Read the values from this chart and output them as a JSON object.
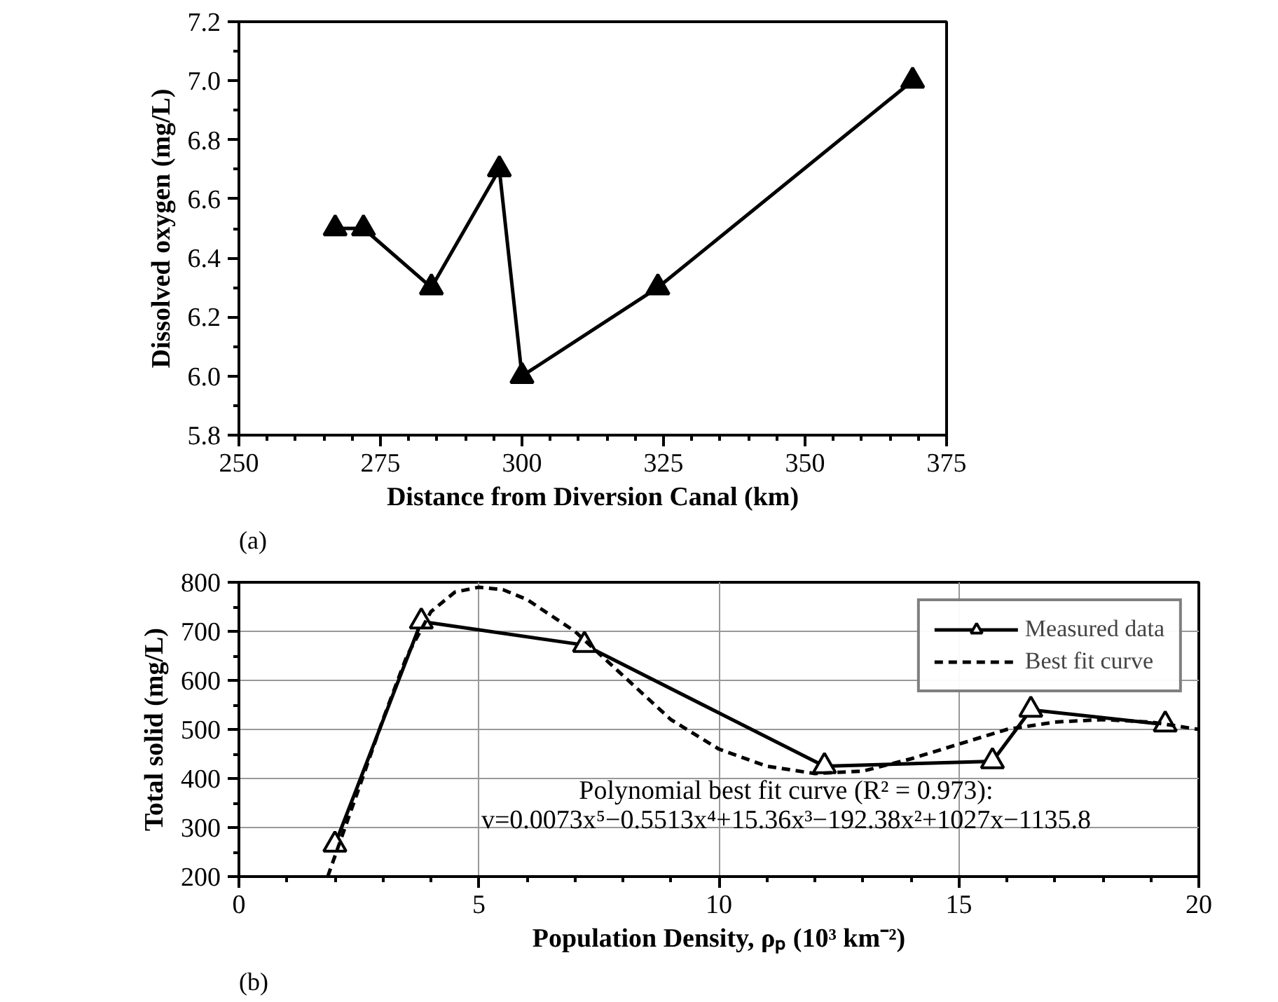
{
  "chart_data": [
    {
      "type": "line",
      "xlabel": "Distance from Diversion Canal (km)",
      "ylabel": "Dissolved oxygen (mg/L)",
      "x": [
        267,
        272,
        284,
        296,
        300,
        324,
        369
      ],
      "series": [
        {
          "color": "#000000",
          "values": [
            6.5,
            6.5,
            6.3,
            6.7,
            6.0,
            6.3,
            7.0
          ]
        }
      ],
      "xlim": [
        250,
        375
      ],
      "xticks": [
        250,
        275,
        300,
        325,
        350,
        375
      ],
      "ylim": [
        5.8,
        7.2
      ],
      "yticks": [
        {
          "value": 5.8,
          "label": "5.8"
        },
        {
          "value": 6.0,
          "label": "6.0"
        },
        {
          "value": 6.2,
          "label": "6.2"
        },
        {
          "value": 6.4,
          "label": "6.4"
        },
        {
          "value": 6.6,
          "label": "6.6"
        },
        {
          "value": 6.8,
          "label": "6.8"
        },
        {
          "value": 7.0,
          "label": "7.0"
        },
        {
          "value": 7.2,
          "label": "7.2"
        }
      ],
      "marker": "triangle",
      "line_style": "solid",
      "grid": false,
      "legend": false,
      "annotations": [
        "(a)"
      ]
    },
    {
      "type": "line",
      "xlabel": "Population Density, ρₚ (10³ km⁻²)",
      "ylabel": "Total solid (mg/L)",
      "series": [
        {
          "name": "Measured data",
          "color": "#000000",
          "x": [
            2.0,
            3.8,
            7.2,
            12.2,
            15.7,
            16.5,
            19.3
          ],
          "values": [
            265,
            720,
            672,
            425,
            435,
            540,
            510
          ],
          "marker": "triangle",
          "line_style": "solid"
        },
        {
          "name": "Best fit curve",
          "color": "#000000",
          "x": [
            1.85,
            2.5,
            3,
            3.5,
            4,
            4.5,
            5,
            5.5,
            6,
            7,
            8,
            9,
            10,
            11,
            12,
            13,
            14,
            15,
            16,
            17,
            18,
            19,
            20
          ],
          "values": [
            200,
            380,
            520,
            650,
            740,
            780,
            790,
            785,
            765,
            700,
            610,
            520,
            460,
            425,
            410,
            415,
            440,
            470,
            500,
            515,
            520,
            515,
            500
          ],
          "marker": "none",
          "line_style": "dashed"
        }
      ],
      "xlim": [
        0,
        20
      ],
      "xticks": [
        0,
        5,
        10,
        15,
        20
      ],
      "ylim": [
        200,
        800
      ],
      "yticks": [
        200,
        300,
        400,
        500,
        600,
        700,
        800
      ],
      "grid": true,
      "legend": "top right",
      "annotations": [
        "Polynomial best fit curve (R² = 0.973):",
        "v=0.0073x⁵−0.5513x⁴+15.36x³−192.38x²+1027x−1135.8",
        "(b)"
      ]
    }
  ]
}
